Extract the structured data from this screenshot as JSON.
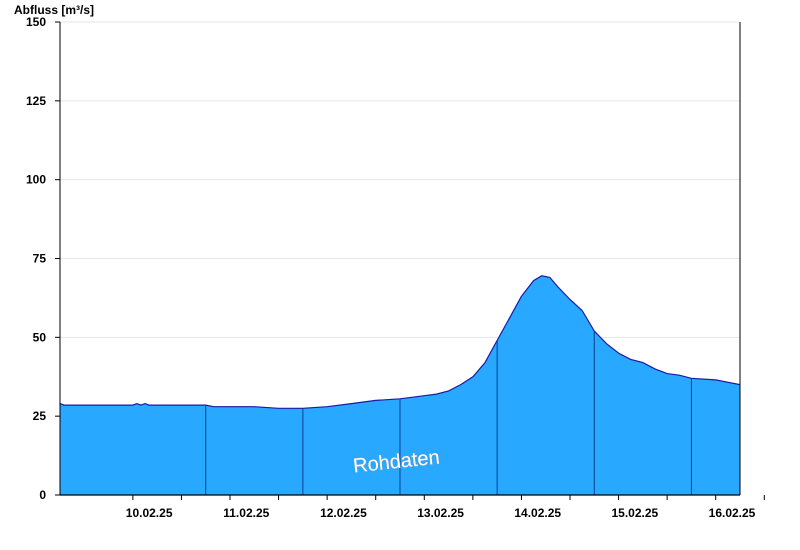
{
  "chart_data": {
    "type": "area",
    "ylabel": "Abfluss [m³/s]",
    "ylim": [
      0,
      150
    ],
    "yticks": [
      "0",
      "25",
      "50",
      "75",
      "100",
      "125",
      "150"
    ],
    "xlim": [
      "2025-02-09T12:00",
      "2025-02-16T12:00"
    ],
    "xticks": [
      "10.02.25",
      "11.02.25",
      "12.02.25",
      "13.02.25",
      "14.02.25",
      "15.02.25",
      "16.02.25"
    ],
    "annotation": "Rohdaten",
    "grid": true,
    "colors": {
      "fill": "#29a8ff",
      "line": "#1a1aa8",
      "day_separator": "#0b3f8f",
      "grid": "#e6e6e6"
    },
    "series": [
      {
        "x": [
          "2025-02-09T12:00",
          "2025-02-09T13:00",
          "2025-02-10T00:00",
          "2025-02-10T06:00",
          "2025-02-10T07:00",
          "2025-02-10T08:00",
          "2025-02-10T09:00",
          "2025-02-10T10:00",
          "2025-02-10T12:00",
          "2025-02-11T00:00",
          "2025-02-11T02:00",
          "2025-02-11T12:00",
          "2025-02-11T18:00",
          "2025-02-11T22:00",
          "2025-02-12T00:00",
          "2025-02-12T06:00",
          "2025-02-12T12:00",
          "2025-02-12T18:00",
          "2025-02-13T00:00",
          "2025-02-13T06:00",
          "2025-02-13T09:00",
          "2025-02-13T12:00",
          "2025-02-13T15:00",
          "2025-02-13T18:00",
          "2025-02-13T21:00",
          "2025-02-14T00:00",
          "2025-02-14T03:00",
          "2025-02-14T06:00",
          "2025-02-14T09:00",
          "2025-02-14T11:00",
          "2025-02-14T13:00",
          "2025-02-14T15:00",
          "2025-02-14T18:00",
          "2025-02-14T21:00",
          "2025-02-15T00:00",
          "2025-02-15T03:00",
          "2025-02-15T06:00",
          "2025-02-15T09:00",
          "2025-02-15T12:00",
          "2025-02-15T15:00",
          "2025-02-15T18:00",
          "2025-02-15T21:00",
          "2025-02-16T00:00",
          "2025-02-16T06:00",
          "2025-02-16T12:00"
        ],
        "y": [
          29,
          28.5,
          28.5,
          28.5,
          29,
          28.5,
          29,
          28.5,
          28.5,
          28.5,
          28,
          28,
          27.5,
          27.5,
          27.5,
          28,
          29,
          30,
          30.5,
          31.5,
          32,
          33,
          35,
          37.5,
          42,
          49,
          56,
          63,
          68,
          69.5,
          69,
          66,
          62,
          58.5,
          52,
          48,
          45,
          43,
          42,
          40,
          38.5,
          38,
          37,
          36.5,
          35
        ]
      }
    ]
  }
}
